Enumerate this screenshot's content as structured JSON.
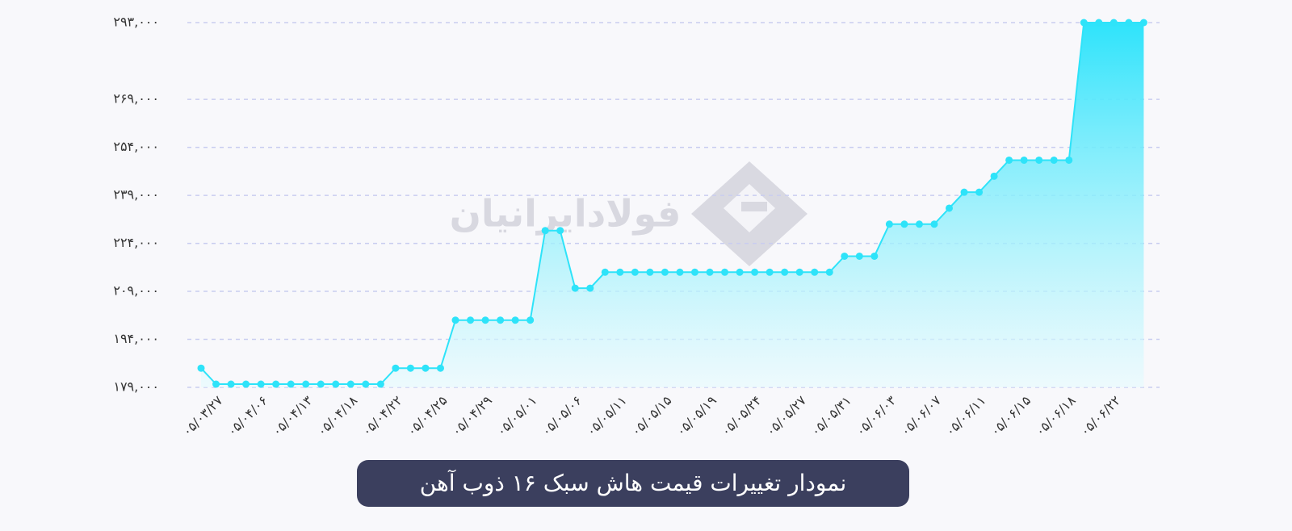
{
  "chart_data": {
    "type": "line",
    "title": "نمودار تغییرات قیمت هاش سبک ۱۶ ذوب آهن",
    "watermark": "فولادایرانیان",
    "categories": [
      null,
      "۰۵/۰۳/۲۷",
      null,
      null,
      "۰۵/۰۴/۰۶",
      null,
      null,
      "۰۵/۰۴/۱۳",
      null,
      null,
      "۰۵/۰۴/۱۸",
      null,
      null,
      "۰۵/۰۴/۲۲",
      null,
      null,
      "۰۵/۰۴/۲۵",
      null,
      null,
      "۰۵/۰۴/۲۹",
      null,
      null,
      "۰۵/۰۵/۰۱",
      null,
      null,
      "۰۵/۰۵/۰۶",
      null,
      null,
      "۰۵/۰۵/۱۱",
      null,
      null,
      "۰۵/۰۵/۱۵",
      null,
      null,
      "۰۵/۰۵/۱۹",
      null,
      null,
      "۰۵/۰۵/۲۴",
      null,
      null,
      "۰۵/۰۵/۲۷",
      null,
      null,
      "۰۵/۰۵/۳۱",
      null,
      null,
      "۰۵/۰۶/۰۳",
      null,
      null,
      "۰۵/۰۶/۰۷",
      null,
      null,
      "۰۵/۰۶/۱۱",
      null,
      null,
      "۰۵/۰۶/۱۵",
      null,
      null,
      "۰۵/۰۶/۱۸",
      null,
      null,
      "۰۵/۰۶/۲۲",
      null,
      null
    ],
    "values": [
      185000,
      180000,
      180000,
      180000,
      180000,
      180000,
      180000,
      180000,
      180000,
      180000,
      180000,
      180000,
      180000,
      185000,
      185000,
      185000,
      185000,
      200000,
      200000,
      200000,
      200000,
      200000,
      200000,
      228000,
      228000,
      210000,
      210000,
      215000,
      215000,
      215000,
      215000,
      215000,
      215000,
      215000,
      215000,
      215000,
      215000,
      215000,
      215000,
      215000,
      215000,
      215000,
      215000,
      220000,
      220000,
      220000,
      230000,
      230000,
      230000,
      230000,
      235000,
      240000,
      240000,
      245000,
      250000,
      250000,
      250000,
      250000,
      250000,
      293000,
      293000,
      293000,
      293000,
      293000
    ],
    "color": "#2ee3f9",
    "ylim": [
      179000,
      293000
    ],
    "yticks": [
      {
        "value": 179000,
        "label": "۱۷۹,۰۰۰"
      },
      {
        "value": 194000,
        "label": "۱۹۴,۰۰۰"
      },
      {
        "value": 209000,
        "label": "۲۰۹,۰۰۰"
      },
      {
        "value": 224000,
        "label": "۲۲۴,۰۰۰"
      },
      {
        "value": 239000,
        "label": "۲۳۹,۰۰۰"
      },
      {
        "value": 254000,
        "label": "۲۵۴,۰۰۰"
      },
      {
        "value": 269000,
        "label": "۲۶۹,۰۰۰"
      },
      {
        "value": 293000,
        "label": "۲۹۳,۰۰۰"
      }
    ],
    "grid": true
  }
}
